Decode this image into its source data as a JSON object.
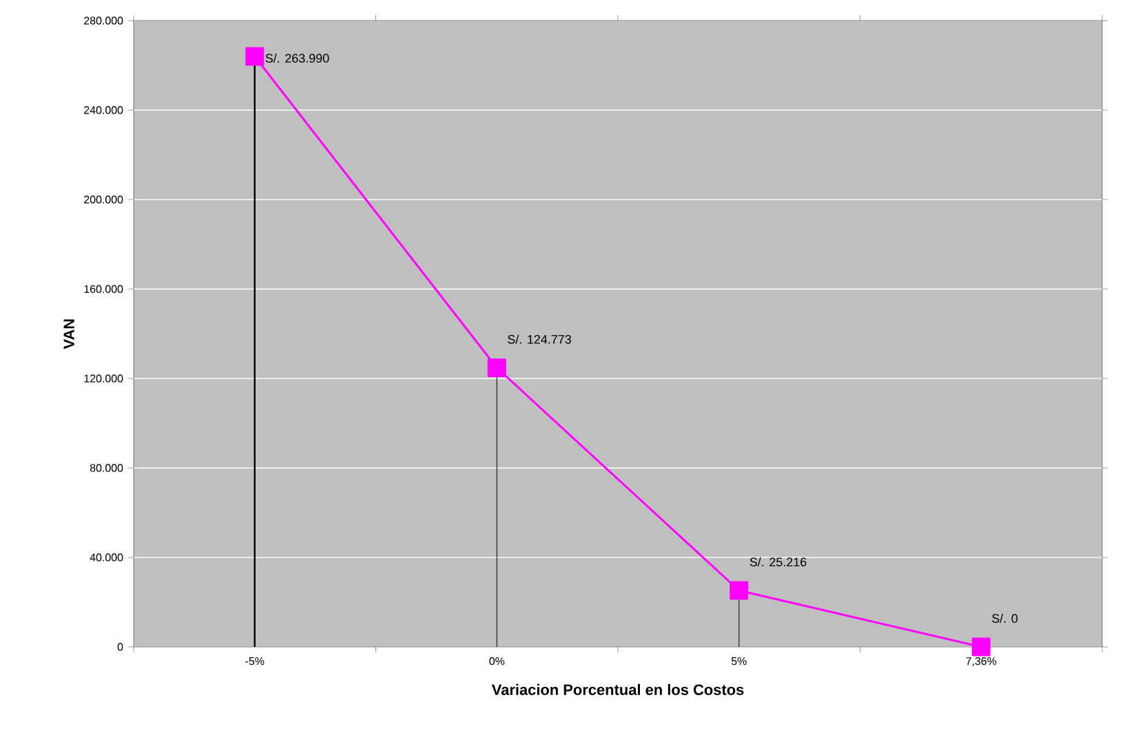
{
  "chart_data": {
    "type": "line",
    "xlabel": "Variacion Porcentual en los Costos",
    "ylabel": "VAN",
    "categories": [
      "-5%",
      "0%",
      "5%",
      "7,36%"
    ],
    "values": [
      263990,
      124773,
      25216,
      0
    ],
    "value_labels": [
      "S/. 263.990",
      "S/. 124.773",
      "S/. 25.216",
      "S/. 0"
    ],
    "errors": [
      [
        0,
        263990
      ],
      [
        0,
        124773
      ],
      [
        0,
        25216
      ],
      null
    ],
    "color": "#ff00ff",
    "marker": "square",
    "line_style": "solid",
    "grid": "y",
    "ylim": [
      0,
      280000
    ],
    "yticks": [
      {
        "value": 0,
        "label": "0"
      },
      {
        "value": 40000,
        "label": "40.000"
      },
      {
        "value": 80000,
        "label": "80.000"
      },
      {
        "value": 120000,
        "label": "120.000"
      },
      {
        "value": 160000,
        "label": "160.000"
      },
      {
        "value": 200000,
        "label": "200.000"
      },
      {
        "value": 240000,
        "label": "240.000"
      },
      {
        "value": 280000,
        "label": "280.000"
      }
    ]
  }
}
